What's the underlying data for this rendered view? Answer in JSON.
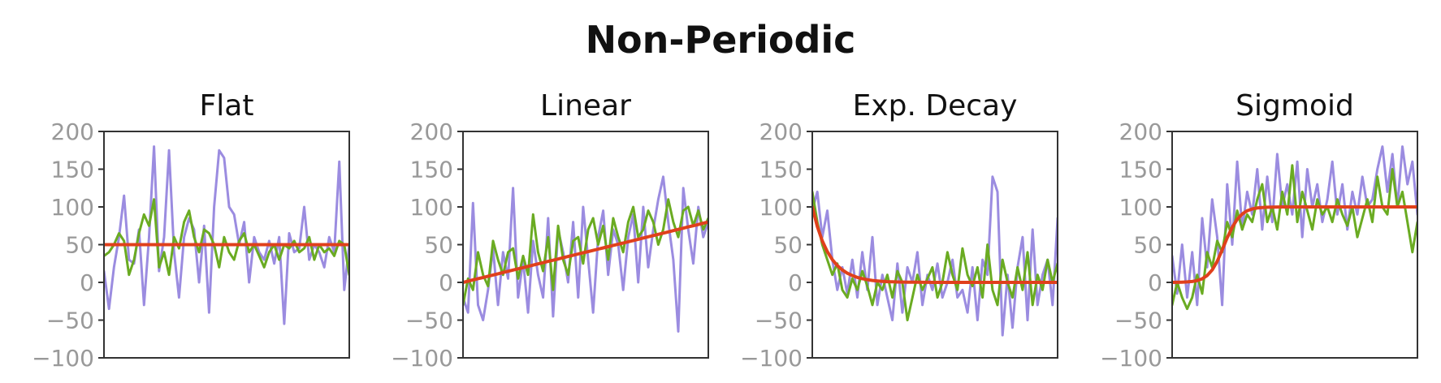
{
  "figure": {
    "title": "Non-Periodic"
  },
  "colors": {
    "purple": "#9b8ce0",
    "green": "#6aab22",
    "red": "#e0401c",
    "axis": "#333333",
    "tick_label": "#999999",
    "title": "#111111"
  },
  "chart_data": [
    {
      "type": "line",
      "title": "Flat",
      "xlabel": "",
      "ylabel": "",
      "ylim": [
        -100,
        200
      ],
      "yticks": [
        200,
        150,
        100,
        50,
        0,
        -50,
        -100
      ],
      "xlim": [
        0,
        50
      ],
      "grid": false,
      "series": [
        {
          "color": "#9b8ce0",
          "values": [
            15,
            -35,
            20,
            60,
            115,
            30,
            25,
            70,
            -30,
            60,
            180,
            15,
            60,
            175,
            40,
            -20,
            60,
            85,
            70,
            0,
            75,
            -40,
            100,
            175,
            165,
            100,
            90,
            50,
            80,
            0,
            60,
            40,
            30,
            55,
            25,
            60,
            -55,
            65,
            40,
            45,
            100,
            30,
            50,
            40,
            20,
            60,
            40,
            160,
            -10,
            50
          ]
        },
        {
          "color": "#6aab22",
          "values": [
            35,
            40,
            50,
            65,
            55,
            10,
            30,
            65,
            90,
            75,
            110,
            20,
            40,
            10,
            60,
            45,
            80,
            95,
            60,
            40,
            70,
            65,
            50,
            20,
            60,
            40,
            30,
            55,
            65,
            40,
            50,
            35,
            20,
            40,
            50,
            30,
            50,
            45,
            55,
            40,
            45,
            60,
            30,
            50,
            40,
            45,
            35,
            55,
            50,
            10
          ]
        },
        {
          "color": "#e0401c",
          "values": [
            50,
            50,
            50,
            50,
            50,
            50,
            50,
            50,
            50,
            50,
            50,
            50,
            50,
            50,
            50,
            50,
            50,
            50,
            50,
            50,
            50,
            50,
            50,
            50,
            50,
            50,
            50,
            50,
            50,
            50,
            50,
            50,
            50,
            50,
            50,
            50,
            50,
            50,
            50,
            50,
            50,
            50,
            50,
            50,
            50,
            50,
            50,
            50,
            50,
            50
          ]
        }
      ]
    },
    {
      "type": "line",
      "title": "Linear",
      "xlabel": "",
      "ylabel": "",
      "ylim": [
        -100,
        200
      ],
      "yticks": [
        200,
        150,
        100,
        50,
        0,
        -50,
        -100
      ],
      "xlim": [
        0,
        50
      ],
      "grid": false,
      "series": [
        {
          "color": "#9b8ce0",
          "values": [
            -20,
            -40,
            105,
            -30,
            -50,
            -10,
            45,
            -30,
            40,
            5,
            125,
            -20,
            30,
            -40,
            55,
            10,
            -20,
            85,
            -45,
            70,
            40,
            0,
            80,
            -20,
            100,
            30,
            -40,
            60,
            95,
            10,
            70,
            50,
            -10,
            60,
            90,
            0,
            100,
            20,
            70,
            110,
            140,
            80,
            30,
            -65,
            125,
            70,
            25,
            100,
            60,
            80
          ]
        },
        {
          "color": "#6aab22",
          "values": [
            -30,
            5,
            -10,
            40,
            10,
            -5,
            55,
            30,
            10,
            40,
            45,
            5,
            35,
            10,
            90,
            40,
            15,
            60,
            -10,
            75,
            30,
            10,
            55,
            60,
            25,
            70,
            85,
            50,
            75,
            30,
            85,
            60,
            40,
            80,
            100,
            60,
            70,
            95,
            80,
            50,
            70,
            110,
            80,
            60,
            95,
            100,
            75,
            95,
            70,
            85
          ]
        },
        {
          "color": "#e0401c",
          "values": [
            0,
            1.6,
            3.3,
            4.9,
            6.5,
            8.2,
            9.8,
            11.4,
            13.1,
            14.7,
            16.3,
            18,
            19.6,
            21.2,
            22.9,
            24.5,
            26.1,
            27.8,
            29.4,
            31,
            32.7,
            34.3,
            35.9,
            37.6,
            39.2,
            40.8,
            42.4,
            44.1,
            45.7,
            47.3,
            49,
            50.6,
            52.2,
            53.9,
            55.5,
            57.1,
            58.8,
            60.4,
            62,
            63.7,
            65.3,
            66.9,
            68.6,
            70.2,
            71.8,
            73.5,
            75.1,
            76.7,
            78.4,
            80
          ]
        }
      ]
    },
    {
      "type": "line",
      "title": "Exp. Decay",
      "xlabel": "",
      "ylabel": "",
      "ylim": [
        -100,
        200
      ],
      "yticks": [
        200,
        150,
        100,
        50,
        0,
        -50,
        -100
      ],
      "xlim": [
        0,
        50
      ],
      "grid": false,
      "series": [
        {
          "color": "#9b8ce0",
          "values": [
            95,
            120,
            60,
            95,
            30,
            -10,
            20,
            -15,
            30,
            -20,
            40,
            -10,
            60,
            -30,
            10,
            -20,
            -50,
            25,
            -40,
            20,
            0,
            40,
            -30,
            10,
            -10,
            25,
            -20,
            0,
            30,
            -20,
            -10,
            -40,
            20,
            -50,
            30,
            10,
            140,
            120,
            -70,
            10,
            -60,
            20,
            60,
            -50,
            70,
            -30,
            10,
            30,
            -30,
            85
          ]
        },
        {
          "color": "#6aab22",
          "values": [
            120,
            80,
            50,
            30,
            10,
            25,
            -10,
            -20,
            5,
            -10,
            15,
            -5,
            -30,
            0,
            -10,
            10,
            -20,
            15,
            0,
            -50,
            -20,
            10,
            -10,
            5,
            20,
            -20,
            0,
            40,
            10,
            -10,
            45,
            10,
            -5,
            20,
            -20,
            50,
            -10,
            -30,
            30,
            0,
            -20,
            20,
            -10,
            40,
            -30,
            10,
            -10,
            30,
            0,
            25
          ]
        },
        {
          "color": "#e0401c",
          "values": [
            100,
            74.1,
            54.9,
            40.7,
            30.1,
            22.3,
            16.5,
            12.2,
            9,
            6.6,
            4.9,
            3.6,
            2.6,
            1.9,
            1.4,
            1,
            0.7,
            0.5,
            0.4,
            0.3,
            0.2,
            0.2,
            0.1,
            0.1,
            0,
            0,
            0,
            0,
            0,
            0,
            0,
            0,
            0,
            0,
            0,
            0,
            0,
            0,
            0,
            0,
            0,
            0,
            0,
            0,
            0,
            0,
            0,
            0,
            0,
            0
          ]
        }
      ]
    },
    {
      "type": "line",
      "title": "Sigmoid",
      "xlabel": "",
      "ylabel": "",
      "ylim": [
        -100,
        200
      ],
      "yticks": [
        200,
        150,
        100,
        50,
        0,
        -50,
        -100
      ],
      "xlim": [
        0,
        50
      ],
      "grid": false,
      "series": [
        {
          "color": "#9b8ce0",
          "values": [
            35,
            -15,
            50,
            -20,
            40,
            -30,
            85,
            20,
            110,
            60,
            -30,
            130,
            50,
            160,
            70,
            120,
            90,
            150,
            70,
            140,
            80,
            170,
            100,
            130,
            90,
            160,
            60,
            150,
            100,
            130,
            80,
            110,
            160,
            90,
            130,
            70,
            120,
            90,
            140,
            100,
            110,
            150,
            180,
            120,
            170,
            100,
            180,
            130,
            160,
            90
          ]
        },
        {
          "color": "#6aab22",
          "values": [
            -30,
            0,
            -20,
            -35,
            -20,
            10,
            -15,
            40,
            20,
            55,
            40,
            80,
            60,
            95,
            70,
            90,
            80,
            110,
            130,
            80,
            100,
            70,
            120,
            90,
            155,
            80,
            120,
            95,
            70,
            110,
            90,
            100,
            80,
            110,
            90,
            75,
            100,
            60,
            85,
            110,
            80,
            140,
            100,
            90,
            150,
            100,
            120,
            80,
            40,
            80
          ]
        },
        {
          "color": "#e0401c",
          "values": [
            0,
            0.1,
            0.3,
            0.6,
            1.2,
            2.4,
            4.7,
            9,
            16.5,
            28,
            43,
            59.1,
            73,
            83.5,
            90.6,
            94.9,
            97.3,
            98.6,
            99.3,
            99.6,
            99.8,
            99.9,
            100,
            100,
            100,
            100,
            100,
            100,
            100,
            100,
            100,
            100,
            100,
            100,
            100,
            100,
            100,
            100,
            100,
            100,
            100,
            100,
            100,
            100,
            100,
            100,
            100,
            100,
            100,
            100
          ]
        }
      ]
    }
  ]
}
